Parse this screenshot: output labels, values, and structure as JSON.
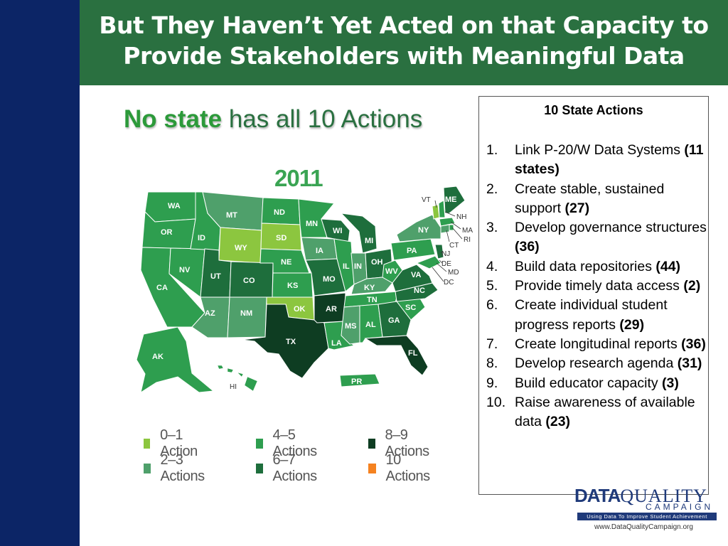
{
  "slide": {
    "title_line1": "But They Haven’t Yet Acted on that Capacity to",
    "title_line2": "Provide Stakeholders with Meaningful Data",
    "subtitle_bold": "No state",
    "subtitle_rest": " has all 10 Actions"
  },
  "map": {
    "year": "2011",
    "states": {
      "WA": "WA",
      "OR": "OR",
      "CA": "CA",
      "AK": "AK",
      "HI": "HI",
      "ID": "ID",
      "NV": "NV",
      "MT": "MT",
      "WY": "WY",
      "UT": "UT",
      "AZ": "AZ",
      "CO": "CO",
      "NM": "NM",
      "ND": "ND",
      "SD": "SD",
      "NE": "NE",
      "KS": "KS",
      "OK": "OK",
      "TX": "TX",
      "MN": "MN",
      "IA": "IA",
      "MO": "MO",
      "AR": "AR",
      "LA": "LA",
      "WI": "WI",
      "IL": "IL",
      "MS": "MS",
      "MI": "MI",
      "IN": "IN",
      "KY": "KY",
      "TN": "TN",
      "AL": "AL",
      "OH": "OH",
      "WV": "WV",
      "GA": "GA",
      "FL": "FL",
      "SC": "SC",
      "NC": "NC",
      "VA": "VA",
      "PA": "PA",
      "NY": "NY",
      "ME": "ME",
      "VT": "VT",
      "NH": "NH",
      "MA": "MA",
      "RI": "RI",
      "CT": "CT",
      "NJ": "NJ",
      "DE": "DE",
      "MD": "MD",
      "DC": "DC",
      "PR": "PR"
    },
    "legend": [
      {
        "label": "0–1 Action",
        "color": "#8cc63f"
      },
      {
        "label": "2–3 Actions",
        "color": "#4fa06b"
      },
      {
        "label": "4–5 Actions",
        "color": "#2e9e4f"
      },
      {
        "label": "6–7 Actions",
        "color": "#1e6e3c"
      },
      {
        "label": "8–9 Actions",
        "color": "#0e3d22"
      },
      {
        "label": "10 Actions",
        "color": "#f58220"
      }
    ]
  },
  "actions": {
    "title": "10 State Actions",
    "items": [
      {
        "num": "1.",
        "text": "Link P-20/W Data Systems ",
        "count": "(11 states)"
      },
      {
        "num": "2.",
        "text": "Create stable, sustained support ",
        "count": "(27)"
      },
      {
        "num": "3.",
        "text": "Develop governance structures ",
        "count": "(36)"
      },
      {
        "num": "4.",
        "text": "Build data repositories ",
        "count": "(44)"
      },
      {
        "num": "5.",
        "text": "Provide timely data access ",
        "count": "(2)"
      },
      {
        "num": "6.",
        "text": "Create individual student progress reports ",
        "count": "(29)"
      },
      {
        "num": "7.",
        "text": "Create longitudinal reports ",
        "count": "(36)"
      },
      {
        "num": "8.",
        "text": "Develop research agenda ",
        "count": "(31)"
      },
      {
        "num": "9.",
        "text": "Build educator capacity ",
        "count": "(3)"
      },
      {
        "num": "10.",
        "text": "Raise awareness of available data ",
        "count": "(23)"
      }
    ]
  },
  "logo": {
    "word1": "DATA",
    "word2": "QUALITY",
    "word3": "CAMPAIGN",
    "tagline": "Using Data To Improve Student Achievement",
    "url": "www.DataQualityCampaign.org"
  }
}
